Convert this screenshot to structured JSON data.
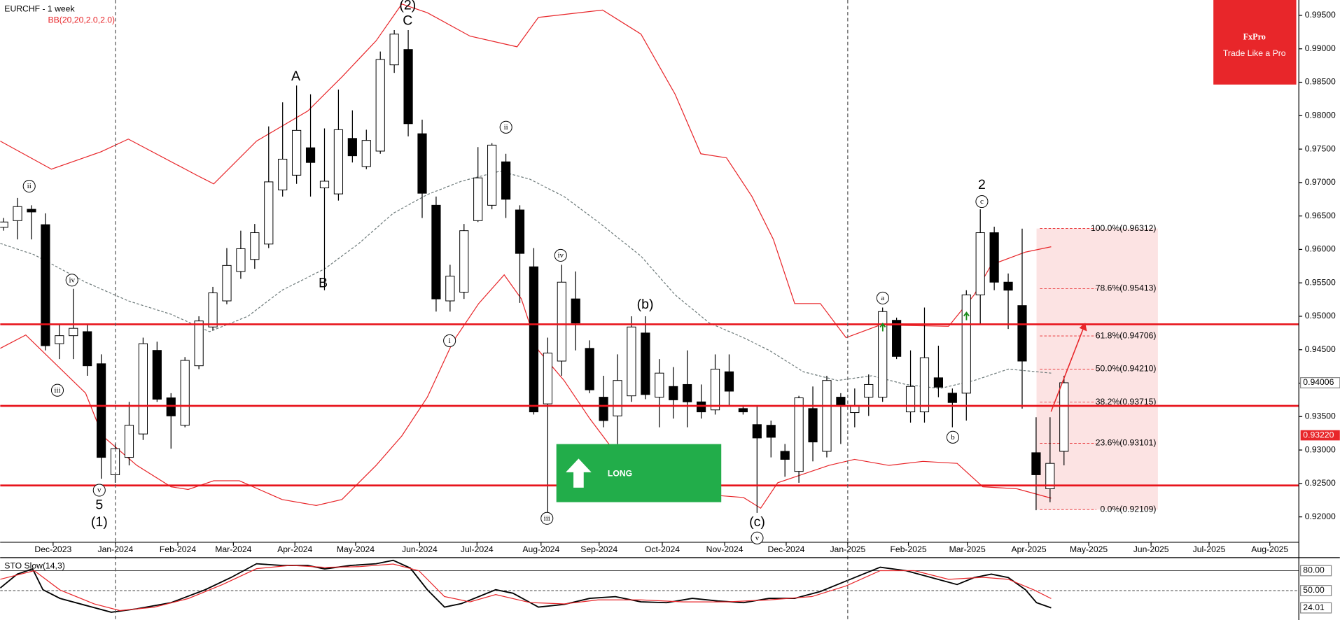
{
  "chart_data": [
    {
      "type": "candlestick",
      "title": "EURCHF - 1 week",
      "indicator": "BB(20,20,2.0,2.0)",
      "open": [
        0.9633,
        0.9643,
        0.966,
        0.9637,
        0.9459,
        0.9471,
        0.9477,
        0.9429,
        0.9263,
        0.9289,
        0.9324,
        0.9449,
        0.9378,
        0.9337,
        0.9426,
        0.9484,
        0.9523,
        0.9567,
        0.9585,
        0.9608,
        0.9689,
        0.9711,
        0.9752,
        0.9692,
        0.9683,
        0.9766,
        0.9724,
        0.9747,
        0.9876,
        0.9899,
        0.9773,
        0.9666,
        0.9523,
        0.9536,
        0.9643,
        0.9666,
        0.9731,
        0.9659,
        0.9574,
        0.9369,
        0.9433,
        0.9526,
        0.9452,
        0.9379,
        0.9351,
        0.9381,
        0.9475,
        0.9379,
        0.9395,
        0.9398,
        0.9372,
        0.936,
        0.9417,
        0.9362,
        0.9338,
        0.9337,
        0.9298,
        0.9268,
        0.9362,
        0.9298,
        0.9379,
        0.9356,
        0.9379,
        0.9379,
        0.9494,
        0.9357,
        0.9357,
        0.9408,
        0.9385,
        0.9385,
        0.9532,
        0.9625,
        0.9551,
        0.9516,
        0.9296,
        0.9242,
        0.9298
      ],
      "high": [
        0.9647,
        0.9677,
        0.9666,
        0.9654,
        0.9487,
        0.9541,
        0.9487,
        0.9443,
        0.9309,
        0.9372,
        0.9468,
        0.9462,
        0.9385,
        0.9439,
        0.95,
        0.9544,
        0.9602,
        0.9628,
        0.9638,
        0.9784,
        0.982,
        0.9845,
        0.9832,
        0.9781,
        0.9839,
        0.9808,
        0.9779,
        0.9896,
        0.9928,
        0.9928,
        0.9794,
        0.9679,
        0.9577,
        0.9638,
        0.9753,
        0.9759,
        0.9743,
        0.9666,
        0.9602,
        0.9468,
        0.9577,
        0.9567,
        0.9464,
        0.9411,
        0.9443,
        0.95,
        0.95,
        0.9436,
        0.9424,
        0.9449,
        0.9398,
        0.9443,
        0.9443,
        0.9366,
        0.9366,
        0.9344,
        0.9309,
        0.9381,
        0.9395,
        0.9411,
        0.9385,
        0.9392,
        0.9413,
        0.9513,
        0.9498,
        0.9449,
        0.9513,
        0.9456,
        0.9392,
        0.9539,
        0.966,
        0.9634,
        0.9564,
        0.9631,
        0.9349,
        0.9349,
        0.9411
      ],
      "low": [
        0.9628,
        0.9615,
        0.9615,
        0.9449,
        0.9436,
        0.9436,
        0.9411,
        0.9257,
        0.9251,
        0.9277,
        0.9315,
        0.9372,
        0.9302,
        0.9334,
        0.9421,
        0.9479,
        0.9518,
        0.9556,
        0.9571,
        0.9602,
        0.9679,
        0.9698,
        0.9679,
        0.9539,
        0.9673,
        0.973,
        0.972,
        0.9743,
        0.9864,
        0.9769,
        0.9647,
        0.9507,
        0.9507,
        0.9526,
        0.9641,
        0.966,
        0.9647,
        0.952,
        0.9353,
        0.9206,
        0.9411,
        0.9449,
        0.9385,
        0.9334,
        0.9309,
        0.9372,
        0.9376,
        0.9334,
        0.9347,
        0.9334,
        0.9347,
        0.9353,
        0.9366,
        0.9353,
        0.9206,
        0.9289,
        0.926,
        0.9251,
        0.9283,
        0.9289,
        0.9309,
        0.9334,
        0.9351,
        0.9372,
        0.9436,
        0.9341,
        0.9341,
        0.9379,
        0.9334,
        0.9344,
        0.9487,
        0.9539,
        0.9481,
        0.9362,
        0.921,
        0.9222,
        0.9277
      ],
      "close": [
        0.9641,
        0.9664,
        0.9656,
        0.9456,
        0.9471,
        0.9482,
        0.9426,
        0.9289,
        0.9302,
        0.9337,
        0.9459,
        0.9376,
        0.9351,
        0.9434,
        0.9493,
        0.9535,
        0.9576,
        0.9601,
        0.9625,
        0.9701,
        0.9735,
        0.9778,
        0.973,
        0.9702,
        0.9779,
        0.974,
        0.9763,
        0.9884,
        0.9922,
        0.9788,
        0.9684,
        0.9526,
        0.956,
        0.9628,
        0.9707,
        0.9756,
        0.9675,
        0.9594,
        0.9357,
        0.9445,
        0.9551,
        0.949,
        0.939,
        0.9344,
        0.9404,
        0.9484,
        0.9383,
        0.9415,
        0.9375,
        0.9372,
        0.9357,
        0.9421,
        0.9388,
        0.9357,
        0.9318,
        0.9319,
        0.9286,
        0.9378,
        0.9312,
        0.9404,
        0.9367,
        0.9366,
        0.9398,
        0.9507,
        0.944,
        0.9395,
        0.9438,
        0.9394,
        0.9371,
        0.9532,
        0.9625,
        0.9551,
        0.9539,
        0.9433,
        0.9263,
        0.928,
        0.94006
      ],
      "last_price_label": "0.94006",
      "marker_price": {
        "value": 0.9322,
        "label": "0.93220"
      },
      "overlays": [
        {
          "color": "#e8262a",
          "dash": false,
          "x": [
            -0.24,
            3.43,
            6.98,
            8.94,
            13.84,
            15.06,
            18.13,
            21.8,
            24.25,
            26.7,
            28.54,
            30.37,
            33.43,
            36.8,
            38.33,
            42.93,
            45.68,
            48.13,
            49.97,
            51.81,
            53.64,
            55.17,
            56.7,
            58.54,
            60.38,
            62.83,
            67.73,
            69.56,
            70.79,
            73.24,
            75.08
          ],
          "values": [
            0.9762,
            0.972,
            0.9746,
            0.9765,
            0.9711,
            0.9698,
            0.9762,
            0.9807,
            0.9858,
            0.9912,
            0.9967,
            0.9954,
            0.9919,
            0.9903,
            0.9947,
            0.9958,
            0.9922,
            0.9832,
            0.9743,
            0.9737,
            0.9679,
            0.9615,
            0.9519,
            0.9519,
            0.9468,
            0.9487,
            0.9485,
            0.9532,
            0.9577,
            0.9596,
            0.9604
          ]
        },
        {
          "color": "#6e7b7b",
          "dash": true,
          "x": [
            -0.24,
            2.2,
            5.88,
            8.94,
            12.0,
            14.76,
            17.51,
            19.96,
            23.02,
            25.47,
            27.92,
            30.37,
            32.82,
            35.58,
            37.72,
            40.17,
            42.62,
            45.68,
            48.13,
            50.58,
            53.03,
            54.87,
            57.32,
            59.77,
            62.22,
            64.67,
            67.11,
            69.56,
            72.01,
            75.08
          ],
          "values": [
            0.9609,
            0.9592,
            0.9551,
            0.9523,
            0.9503,
            0.9477,
            0.95,
            0.9539,
            0.9571,
            0.9609,
            0.9654,
            0.9682,
            0.9702,
            0.9717,
            0.9705,
            0.9679,
            0.9641,
            0.959,
            0.9532,
            0.949,
            0.9468,
            0.9449,
            0.9417,
            0.9404,
            0.9411,
            0.9398,
            0.9392,
            0.9404,
            0.9421,
            0.9415
          ]
        },
        {
          "color": "#e8262a",
          "dash": false,
          "x": [
            -0.24,
            1.59,
            5.88,
            7.1,
            9.55,
            12.0,
            13.23,
            15.06,
            16.9,
            19.96,
            22.41,
            24.25,
            26.7,
            28.54,
            30.37,
            32.21,
            34.05,
            35.88,
            37.11,
            38.33,
            40.17,
            42.01,
            43.85,
            46.29,
            48.74,
            51.19,
            53.03,
            54.26,
            55.48,
            57.32,
            59.15,
            60.99,
            63.44,
            65.89,
            68.34,
            70.18,
            72.63,
            75.08
          ],
          "values": [
            0.9452,
            0.9472,
            0.9385,
            0.9321,
            0.9277,
            0.9245,
            0.9241,
            0.9254,
            0.9254,
            0.9226,
            0.9217,
            0.9226,
            0.9277,
            0.9321,
            0.9379,
            0.9462,
            0.9519,
            0.9562,
            0.9526,
            0.9449,
            0.9404,
            0.9347,
            0.9296,
            0.9257,
            0.9238,
            0.9232,
            0.9229,
            0.9213,
            0.9251,
            0.9264,
            0.9277,
            0.9286,
            0.9277,
            0.9283,
            0.928,
            0.9245,
            0.9242,
            0.9228
          ]
        }
      ],
      "levels": [
        0.9488,
        0.9366,
        0.9247
      ],
      "level_color": "#e8141c",
      "fibonacci": {
        "xlim": [
          74.03,
          82.73
        ],
        "levels": [
          {
            "value": 0.96312,
            "label": "100.0%(0.96312)"
          },
          {
            "value": 0.95413,
            "label": "78.6%(0.95413)"
          },
          {
            "value": 0.94706,
            "label": "61.8%(0.94706)"
          },
          {
            "value": 0.9421,
            "label": "50.0%(0.94210)"
          },
          {
            "value": 0.93715,
            "label": "38.2%(0.93715)"
          },
          {
            "value": 0.93101,
            "label": "23.6%(0.93101)"
          },
          {
            "value": 0.92109,
            "label": "0.0%(0.92109)"
          }
        ]
      },
      "wave_labels": [
        "ii",
        "iv",
        "iii",
        "v",
        "5",
        "(1)",
        "A",
        "B",
        "(2)",
        "C",
        "ii",
        "i",
        "iv",
        "iii",
        "(b)",
        "(c)",
        "v",
        "a",
        "b",
        "2",
        "c"
      ],
      "signal": "LONG",
      "brand": "FxPro",
      "tagline": "Trade Like a Pro",
      "xlim": [
        -0.245,
        92.83
      ],
      "ylim": [
        0.9162,
        0.9973
      ],
      "xticks": [
        {
          "value": 3.55,
          "label": "Dec-2023"
        },
        {
          "value": 8.02,
          "label": "Jan-2024"
        },
        {
          "value": 12.49,
          "label": "Feb-2024"
        },
        {
          "value": 16.47,
          "label": "Mar-2024"
        },
        {
          "value": 20.88,
          "label": "Apr-2024"
        },
        {
          "value": 25.23,
          "label": "May-2024"
        },
        {
          "value": 29.82,
          "label": "Jun-2024"
        },
        {
          "value": 33.93,
          "label": "Jul-2024"
        },
        {
          "value": 38.52,
          "label": "Aug-2024"
        },
        {
          "value": 42.68,
          "label": "Sep-2024"
        },
        {
          "value": 47.21,
          "label": "Oct-2024"
        },
        {
          "value": 51.68,
          "label": "Nov-2024"
        },
        {
          "value": 56.09,
          "label": "Dec-2024"
        },
        {
          "value": 60.5,
          "label": "Jan-2025"
        },
        {
          "value": 64.85,
          "label": "Feb-2025"
        },
        {
          "value": 69.07,
          "label": "Mar-2025"
        },
        {
          "value": 73.48,
          "label": "Apr-2025"
        },
        {
          "value": 77.77,
          "label": "May-2025"
        },
        {
          "value": 82.24,
          "label": "Jun-2025"
        },
        {
          "value": 86.4,
          "label": "Jul-2025"
        },
        {
          "value": 90.75,
          "label": "Aug-2025"
        }
      ],
      "yticks": [
        {
          "value": 0.92,
          "label": "0.92000"
        },
        {
          "value": 0.925,
          "label": "0.92500"
        },
        {
          "value": 0.93,
          "label": "0.93000"
        },
        {
          "value": 0.935,
          "label": "0.93500"
        },
        {
          "value": 0.94,
          "label": "0.94000"
        },
        {
          "value": 0.945,
          "label": "0.94500"
        },
        {
          "value": 0.95,
          "label": "0.95000"
        },
        {
          "value": 0.955,
          "label": "0.95500"
        },
        {
          "value": 0.96,
          "label": "0.96000"
        },
        {
          "value": 0.965,
          "label": "0.96500"
        },
        {
          "value": 0.97,
          "label": "0.97000"
        },
        {
          "value": 0.975,
          "label": "0.97500"
        },
        {
          "value": 0.98,
          "label": "0.98000"
        },
        {
          "value": 0.985,
          "label": "0.98500"
        },
        {
          "value": 0.99,
          "label": "0.99000"
        },
        {
          "value": 0.995,
          "label": "0.99500"
        }
      ]
    },
    {
      "type": "line",
      "title": "STO Slow(14,3)",
      "series": [
        {
          "color": "#000000",
          "x": [
            -0.24,
            0.98,
            2.08,
            2.82,
            4.04,
            5.88,
            7.72,
            9.55,
            12.0,
            14.45,
            16.29,
            18.13,
            19.96,
            21.8,
            23.02,
            24.86,
            26.7,
            27.92,
            29.15,
            30.37,
            31.6,
            32.82,
            34.05,
            35.27,
            36.5,
            38.33,
            40.17,
            42.01,
            43.85,
            45.68,
            47.52,
            49.36,
            51.19,
            53.03,
            54.87,
            56.7,
            58.54,
            60.38,
            62.83,
            64.67,
            66.5,
            68.34,
            69.56,
            70.79,
            72.01,
            73.24,
            74.03,
            75.08
          ],
          "values": [
            53.9,
            74.8,
            82.6,
            51.3,
            38.3,
            27.8,
            17.4,
            22.6,
            31.8,
            51.3,
            69.6,
            90.4,
            87.8,
            87.8,
            82.6,
            87.8,
            90.4,
            95.6,
            83.9,
            51.3,
            25.2,
            30.5,
            40.9,
            51.3,
            46.1,
            25.2,
            29.2,
            38.3,
            40.9,
            33.1,
            31.8,
            38.3,
            34.4,
            31.8,
            38.3,
            38.3,
            48.7,
            64.4,
            85.2,
            80,
            69.6,
            59.1,
            69.6,
            74.8,
            69.6,
            51.3,
            31.8,
            24.01
          ]
        },
        {
          "color": "#e8262a",
          "x": [
            -0.24,
            2.2,
            4.04,
            6.49,
            8.33,
            10.78,
            13.23,
            15.68,
            18.13,
            20.58,
            23.02,
            25.47,
            27.92,
            29.76,
            31.6,
            33.43,
            35.27,
            37.72,
            40.17,
            42.62,
            45.68,
            48.74,
            51.81,
            54.87,
            57.93,
            60.38,
            62.83,
            65.28,
            67.73,
            70.18,
            72.01,
            73.85,
            75.08
          ],
          "values": [
            67,
            80,
            51,
            30,
            20,
            25,
            38,
            59,
            83,
            88,
            85,
            86,
            90,
            80,
            41,
            33,
            44,
            32,
            30,
            36,
            36,
            33,
            33,
            36,
            41,
            57,
            80,
            80,
            67,
            70,
            67,
            51,
            38
          ]
        }
      ],
      "last_value_label": "24.01",
      "ylim": [
        9.6,
        97
      ],
      "yticks": [
        {
          "value": 80,
          "label": "80.00"
        },
        {
          "value": 50,
          "label": "50.00"
        }
      ]
    }
  ]
}
